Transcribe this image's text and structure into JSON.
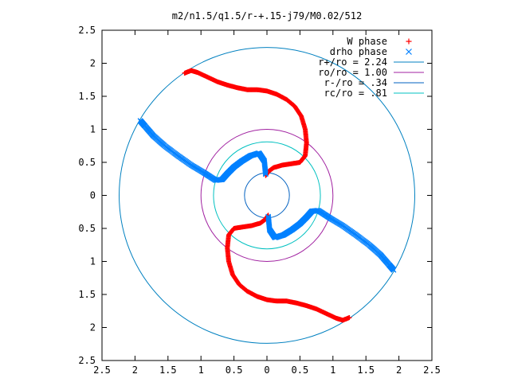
{
  "chart_data": {
    "type": "scatter",
    "title": "m2/n1.5/q1.5/r-+.15-j79/M0.02/512",
    "xlabel": "",
    "ylabel": "",
    "xlim": [
      -2.5,
      2.5
    ],
    "ylim": [
      -2.5,
      2.5
    ],
    "x_ticks": [
      -2.5,
      -2,
      -1.5,
      -1,
      -0.5,
      0,
      0.5,
      1,
      1.5,
      2,
      2.5
    ],
    "y_ticks": [
      -2.5,
      -2,
      -1.5,
      -1,
      -0.5,
      0,
      0.5,
      1,
      1.5,
      2,
      2.5
    ],
    "x_tick_labels": [
      "2.5",
      "2",
      "1.5",
      "1",
      "0.5",
      "0",
      "0.5",
      "1",
      "1.5",
      "2",
      "2.5"
    ],
    "y_tick_labels": [
      "2.5",
      "2",
      "1.5",
      "1",
      "0.5",
      "0",
      "0.5",
      "1",
      "1.5",
      "2",
      "2.5"
    ],
    "grid": false,
    "legend_position": "top-right",
    "series": [
      {
        "name": "W phase",
        "marker": "+",
        "color": "#ff0000",
        "x": [
          -1.25,
          -1.15,
          -1.05,
          -0.9,
          -0.75,
          -0.6,
          -0.45,
          -0.3,
          -0.15,
          0.0,
          0.15,
          0.3,
          0.42,
          0.52,
          0.58,
          0.6,
          0.58,
          0.5,
          0.38,
          0.24,
          0.1,
          0.02,
          -0.02,
          1.25,
          1.15,
          1.05,
          0.9,
          0.75,
          0.6,
          0.45,
          0.3,
          0.15,
          0.0,
          -0.15,
          -0.3,
          -0.42,
          -0.52,
          -0.58,
          -0.6,
          -0.58,
          -0.5,
          -0.38,
          -0.24,
          -0.1,
          -0.02,
          0.02
        ],
        "y": [
          1.85,
          1.89,
          1.86,
          1.79,
          1.72,
          1.67,
          1.63,
          1.6,
          1.6,
          1.58,
          1.53,
          1.45,
          1.35,
          1.2,
          1.0,
          0.8,
          0.6,
          0.5,
          0.48,
          0.46,
          0.42,
          0.36,
          0.3,
          -1.85,
          -1.89,
          -1.86,
          -1.79,
          -1.72,
          -1.67,
          -1.63,
          -1.6,
          -1.6,
          -1.58,
          -1.53,
          -1.45,
          -1.35,
          -1.2,
          -1.0,
          -0.8,
          -0.6,
          -0.5,
          -0.48,
          -0.46,
          -0.42,
          -0.36,
          -0.3
        ]
      },
      {
        "name": "drho phase",
        "marker": "x",
        "color": "#0080ff",
        "x": [
          -1.92,
          -1.85,
          -1.72,
          -1.55,
          -1.35,
          -1.15,
          -0.95,
          -0.78,
          -0.68,
          -0.6,
          -0.5,
          -0.38,
          -0.25,
          -0.12,
          -0.04,
          -0.02,
          1.92,
          1.85,
          1.72,
          1.55,
          1.35,
          1.15,
          0.95,
          0.78,
          0.68,
          0.6,
          0.5,
          0.38,
          0.25,
          0.12,
          0.04,
          0.02
        ],
        "y": [
          1.13,
          1.05,
          0.9,
          0.75,
          0.6,
          0.46,
          0.34,
          0.23,
          0.24,
          0.33,
          0.43,
          0.52,
          0.6,
          0.64,
          0.52,
          0.32,
          -1.13,
          -1.05,
          -0.9,
          -0.75,
          -0.6,
          -0.46,
          -0.34,
          -0.23,
          -0.24,
          -0.33,
          -0.43,
          -0.52,
          -0.6,
          -0.64,
          -0.52,
          -0.32
        ]
      }
    ],
    "circles": [
      {
        "name": "r+/ro = 2.24",
        "radius": 2.24,
        "color": "#0080c0"
      },
      {
        "name": "ro/ro = 1.00",
        "radius": 1.0,
        "color": "#a020a0"
      },
      {
        "name": "r-/ro = .34",
        "radius": 0.34,
        "color": "#0060c0"
      },
      {
        "name": "rc/ro = .81",
        "radius": 0.81,
        "color": "#00c0c0"
      }
    ]
  }
}
